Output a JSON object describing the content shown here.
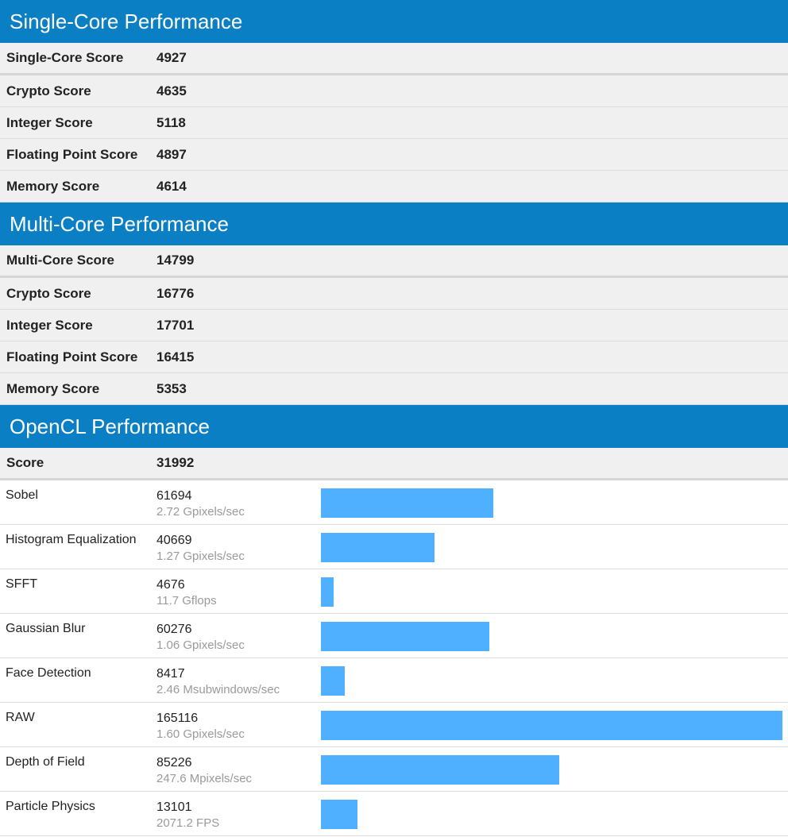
{
  "single_core": {
    "title": "Single-Core Performance",
    "summary": {
      "label": "Single-Core Score",
      "value": "4927"
    },
    "rows": [
      {
        "label": "Crypto Score",
        "value": "4635"
      },
      {
        "label": "Integer Score",
        "value": "5118"
      },
      {
        "label": "Floating Point Score",
        "value": "4897"
      },
      {
        "label": "Memory Score",
        "value": "4614"
      }
    ]
  },
  "multi_core": {
    "title": "Multi-Core Performance",
    "summary": {
      "label": "Multi-Core Score",
      "value": "14799"
    },
    "rows": [
      {
        "label": "Crypto Score",
        "value": "16776"
      },
      {
        "label": "Integer Score",
        "value": "17701"
      },
      {
        "label": "Floating Point Score",
        "value": "16415"
      },
      {
        "label": "Memory Score",
        "value": "5353"
      }
    ]
  },
  "opencl": {
    "title": "OpenCL Performance",
    "summary": {
      "label": "Score",
      "value": "31992"
    },
    "bar_color": "#4fb0ff",
    "workloads": [
      {
        "label": "Sobel",
        "score": 61694,
        "rate": "2.72 Gpixels/sec"
      },
      {
        "label": "Histogram Equalization",
        "score": 40669,
        "rate": "1.27 Gpixels/sec"
      },
      {
        "label": "SFFT",
        "score": 4676,
        "rate": "11.7 Gflops"
      },
      {
        "label": "Gaussian Blur",
        "score": 60276,
        "rate": "1.06 Gpixels/sec"
      },
      {
        "label": "Face Detection",
        "score": 8417,
        "rate": "2.46 Msubwindows/sec"
      },
      {
        "label": "RAW",
        "score": 165116,
        "rate": "1.60 Gpixels/sec"
      },
      {
        "label": "Depth of Field",
        "score": 85226,
        "rate": "247.6 Mpixels/sec"
      },
      {
        "label": "Particle Physics",
        "score": 13101,
        "rate": "2071.2 FPS"
      }
    ]
  }
}
